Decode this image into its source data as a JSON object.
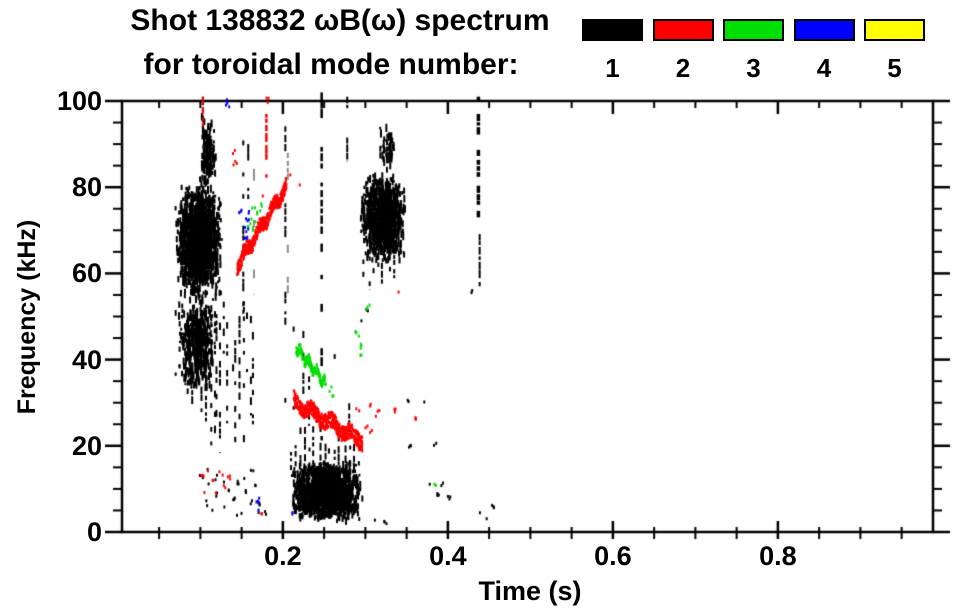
{
  "title": {
    "line1": "Shot 138832 ωB(ω) spectrum",
    "line2": "for toroidal mode number:"
  },
  "legend": {
    "items": [
      {
        "label": "1",
        "color": "#000000"
      },
      {
        "label": "2",
        "color": "#ff0000"
      },
      {
        "label": "3",
        "color": "#00dd00"
      },
      {
        "label": "4",
        "color": "#0000ff"
      },
      {
        "label": "5",
        "color": "#ffff00"
      }
    ]
  },
  "chart_data": {
    "type": "scatter",
    "subtype": "spectrogram-mode-scatter",
    "title": "Shot 138832 ωB(ω) spectrum for toroidal mode number:",
    "grid": false,
    "legend_position": "top-right",
    "x_axis": {
      "label": "Time (s)",
      "min": 0.005,
      "max": 0.988,
      "majors": [
        0.2,
        0.4,
        0.6,
        0.8
      ],
      "major_labels": [
        "0.2",
        "0.4",
        "0.6",
        "0.8"
      ],
      "minor_step": 0.05
    },
    "y_axis": {
      "label": "Frequency (kHz)",
      "min": 0,
      "max": 100,
      "majors": [
        0,
        20,
        40,
        60,
        80,
        100
      ],
      "major_labels": [
        "0",
        "20",
        "40",
        "60",
        "80",
        "100"
      ],
      "minor_step": 5
    },
    "mode_colors": {
      "1": "#000000",
      "2": "#ff0000",
      "3": "#00dd00",
      "4": "#0000ff",
      "5": "#ffff00"
    },
    "features": [
      {
        "m": 1,
        "type": "cluster",
        "t": [
          0.068,
          0.126
        ],
        "f": [
          55,
          81
        ],
        "n": 1500,
        "s": 1
      },
      {
        "m": 1,
        "type": "cluster",
        "t": [
          0.072,
          0.118
        ],
        "f": [
          33,
          56
        ],
        "n": 520,
        "s": 2
      },
      {
        "m": 1,
        "type": "vlines",
        "t": [
          0.07,
          0.168
        ],
        "ftop": [
          50,
          56
        ],
        "fbot": [
          18,
          38
        ],
        "count": 22,
        "dens": 0.38,
        "s": 3
      },
      {
        "m": 1,
        "type": "cluster",
        "t": [
          0.098,
          0.118
        ],
        "f": [
          78,
          98
        ],
        "n": 130,
        "s": 4
      },
      {
        "m": 1,
        "type": "vline",
        "t": 0.103,
        "f": [
          84,
          101
        ],
        "dens": 0.8,
        "w": 2,
        "s": 5
      },
      {
        "m": 1,
        "type": "vline",
        "t": 0.152,
        "f": [
          49,
          92
        ],
        "dens": 0.55,
        "w": 2,
        "s": 6
      },
      {
        "m": 1,
        "type": "vline",
        "t": 0.158,
        "f": [
          75,
          90
        ],
        "dens": 0.6,
        "w": 2,
        "s": 7
      },
      {
        "m": 1,
        "type": "vline",
        "t": 0.203,
        "f": [
          30,
          96
        ],
        "dens": 0.5,
        "w": 2,
        "s": 8
      },
      {
        "m": 1,
        "type": "vline",
        "t": 0.206,
        "f": [
          55,
          97
        ],
        "dens": 0.4,
        "w": 2,
        "a": 0.45,
        "s": 9
      },
      {
        "m": 1,
        "type": "vline",
        "t": 0.165,
        "f": [
          55,
          95
        ],
        "dens": 0.3,
        "w": 2,
        "a": 0.45,
        "s": 10
      },
      {
        "m": 1,
        "type": "vline",
        "t": 0.247,
        "f": [
          20,
          102
        ],
        "dens": 0.55,
        "w": 2.5,
        "s": 11
      },
      {
        "m": 1,
        "type": "vline",
        "t": 0.278,
        "f": [
          86,
          101
        ],
        "dens": 0.5,
        "w": 2,
        "s": 12
      },
      {
        "m": 1,
        "type": "cluster",
        "t": [
          0.292,
          0.348
        ],
        "f": [
          63,
          84
        ],
        "n": 1000,
        "s": 13
      },
      {
        "m": 1,
        "type": "vlines",
        "t": [
          0.295,
          0.345
        ],
        "ftop": [
          63,
          66
        ],
        "fbot": [
          55,
          60
        ],
        "count": 8,
        "dens": 0.45,
        "s": 14
      },
      {
        "m": 1,
        "type": "cluster",
        "t": [
          0.315,
          0.335
        ],
        "f": [
          84,
          95
        ],
        "n": 60,
        "s": 15
      },
      {
        "m": 1,
        "type": "cluster",
        "t": [
          0.207,
          0.296
        ],
        "f": [
          3,
          17
        ],
        "n": 1350,
        "s": 16
      },
      {
        "m": 1,
        "type": "vlines",
        "t": [
          0.205,
          0.29
        ],
        "ftop": [
          18,
          25
        ],
        "fbot": [
          10,
          15
        ],
        "count": 14,
        "dens": 0.8,
        "s": 17
      },
      {
        "m": 1,
        "type": "vlines",
        "t": [
          0.21,
          0.285
        ],
        "ftop": [
          30,
          50
        ],
        "fbot": [
          22,
          27
        ],
        "count": 9,
        "dens": 0.25,
        "s": 18
      },
      {
        "m": 1,
        "type": "specks",
        "pts": [
          [
            0.1,
            13.5
          ],
          [
            0.105,
            7
          ],
          [
            0.11,
            11
          ],
          [
            0.115,
            5.5
          ],
          [
            0.12,
            9
          ],
          [
            0.126,
            12.5
          ],
          [
            0.13,
            6
          ],
          [
            0.135,
            10
          ],
          [
            0.14,
            8
          ],
          [
            0.145,
            12
          ],
          [
            0.15,
            5
          ],
          [
            0.155,
            9.5
          ],
          [
            0.16,
            7
          ],
          [
            0.165,
            11
          ],
          [
            0.168,
            4.5
          ],
          [
            0.172,
            6.5
          ],
          [
            0.178,
            5
          ],
          [
            0.108,
            14.5
          ],
          [
            0.118,
            13
          ],
          [
            0.142,
            4.2
          ],
          [
            0.152,
            13.2
          ],
          [
            0.162,
            14.8
          ]
        ],
        "sz": 3,
        "s": 19
      },
      {
        "m": 1,
        "type": "vline",
        "t": 0.437,
        "f": [
          73,
          101
        ],
        "dens": 0.85,
        "w": 3.5,
        "s": 20
      },
      {
        "m": 1,
        "type": "vline",
        "t": 0.4385,
        "f": [
          57,
          74
        ],
        "dens": 0.6,
        "w": 2,
        "s": 21
      },
      {
        "m": 1,
        "type": "specks",
        "pts": [
          [
            0.426,
            56
          ],
          [
            0.35,
            31
          ],
          [
            0.368,
            31
          ],
          [
            0.352,
            20.5
          ],
          [
            0.383,
            20.5
          ],
          [
            0.378,
            12
          ],
          [
            0.386,
            9
          ],
          [
            0.393,
            11.5
          ],
          [
            0.401,
            8.5
          ],
          [
            0.437,
            5
          ],
          [
            0.446,
            3
          ],
          [
            0.453,
            6.2
          ],
          [
            0.312,
            3.5
          ],
          [
            0.322,
            2.5
          ],
          [
            0.302,
            52
          ],
          [
            0.296,
            49
          ]
        ],
        "sz": 3,
        "s": 22
      },
      {
        "m": 2,
        "type": "chirp",
        "p1": [
          0.143,
          62
        ],
        "p2": [
          0.203,
          80.5
        ],
        "th": 3,
        "n": 420,
        "s": 23
      },
      {
        "m": 2,
        "type": "vline",
        "t": 0.18,
        "f": [
          82,
          97
        ],
        "dens": 0.75,
        "w": 2.5,
        "s": 24
      },
      {
        "m": 2,
        "type": "vline",
        "t": 0.103,
        "f": [
          91,
          101
        ],
        "dens": 0.8,
        "w": 2,
        "s": 25
      },
      {
        "m": 2,
        "type": "specks",
        "pts": [
          [
            0.181,
            100.5
          ],
          [
            0.139,
            88.5
          ],
          [
            0.141,
            86
          ],
          [
            0.218,
            81
          ],
          [
            0.209,
            83.5
          ],
          [
            0.172,
            78.5
          ]
        ],
        "sz": 3,
        "s": 26
      },
      {
        "m": 2,
        "type": "chirp",
        "p1": [
          0.212,
          30.5
        ],
        "p2": [
          0.295,
          21.5
        ],
        "th": 3.5,
        "n": 520,
        "s": 27
      },
      {
        "m": 2,
        "type": "specks",
        "pts": [
          [
            0.299,
            25
          ],
          [
            0.305,
            23.5
          ],
          [
            0.31,
            27
          ],
          [
            0.314,
            28
          ],
          [
            0.333,
            28.5
          ],
          [
            0.29,
            28.5
          ],
          [
            0.303,
            29.5
          ],
          [
            0.34,
            55.5
          ],
          [
            0.172,
            4.2
          ],
          [
            0.36,
            26.5
          ]
        ],
        "sz": 3,
        "s": 28
      },
      {
        "m": 2,
        "type": "specks",
        "pts": [
          [
            0.101,
            13
          ],
          [
            0.106,
            10
          ],
          [
            0.112,
            12.3
          ],
          [
            0.119,
            9.8
          ],
          [
            0.124,
            14
          ],
          [
            0.129,
            11
          ],
          [
            0.134,
            13.2
          ],
          [
            0.11,
            15
          ]
        ],
        "sz": 3,
        "s": 29
      },
      {
        "m": 3,
        "type": "chirp",
        "p1": [
          0.215,
          43
        ],
        "p2": [
          0.251,
          34.8
        ],
        "th": 2.2,
        "n": 160,
        "s": 30
      },
      {
        "m": 3,
        "type": "specks",
        "pts": [
          [
            0.158,
            71.5
          ],
          [
            0.16,
            73
          ],
          [
            0.163,
            75
          ],
          [
            0.166,
            72
          ],
          [
            0.169,
            74.5
          ],
          [
            0.171,
            76
          ],
          [
            0.162,
            70.5
          ],
          [
            0.29,
            45.7
          ],
          [
            0.292,
            43.5
          ],
          [
            0.295,
            41.5
          ],
          [
            0.286,
            46.5
          ],
          [
            0.383,
            11.2
          ],
          [
            0.302,
            52.5
          ],
          [
            0.257,
            33.5
          ],
          [
            0.261,
            32
          ]
        ],
        "sz": 3,
        "s": 31
      },
      {
        "m": 4,
        "type": "specks",
        "pts": [
          [
            0.155,
            70.5
          ],
          [
            0.156,
            72.5
          ],
          [
            0.157,
            74.5
          ],
          [
            0.154,
            69
          ],
          [
            0.148,
            75
          ],
          [
            0.132,
            99.5
          ],
          [
            0.133,
            101
          ],
          [
            0.168,
            7
          ],
          [
            0.169,
            5.5
          ],
          [
            0.171,
            8.2
          ],
          [
            0.21,
            5
          ]
        ],
        "sz": 3,
        "s": 32
      }
    ]
  }
}
